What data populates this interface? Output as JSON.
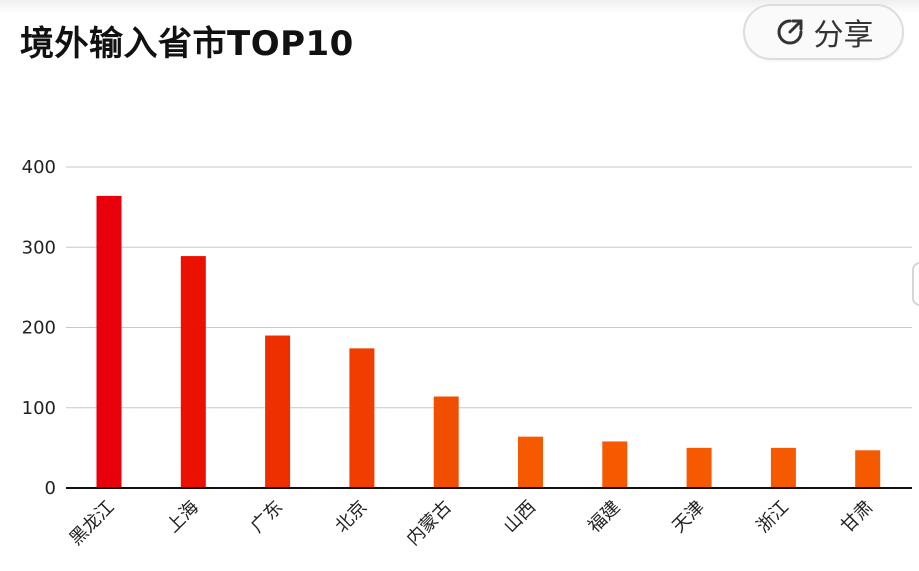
{
  "header": {
    "title": "境外输入省市TOP10",
    "share_label": "分享",
    "share_icon": "share-arrow-icon"
  },
  "chart_data": {
    "type": "bar",
    "title": "境外输入省市TOP10",
    "categories": [
      "黑龙江",
      "上海",
      "广东",
      "北京",
      "内蒙古",
      "山西",
      "福建",
      "天津",
      "浙江",
      "甘肃"
    ],
    "values": [
      364,
      289,
      190,
      174,
      114,
      64,
      58,
      50,
      50,
      47
    ],
    "ylim": [
      0,
      400
    ],
    "yticks": [
      0,
      100,
      200,
      300,
      400
    ],
    "xlabel": "",
    "ylabel": "",
    "grid": true,
    "legend": "none",
    "colors": [
      "#e8000b",
      "#eb1000",
      "#ee3000",
      "#ef3e00",
      "#f04f00",
      "#f55a00",
      "#f55a00",
      "#f55a00",
      "#f55a00",
      "#f55a00"
    ]
  }
}
